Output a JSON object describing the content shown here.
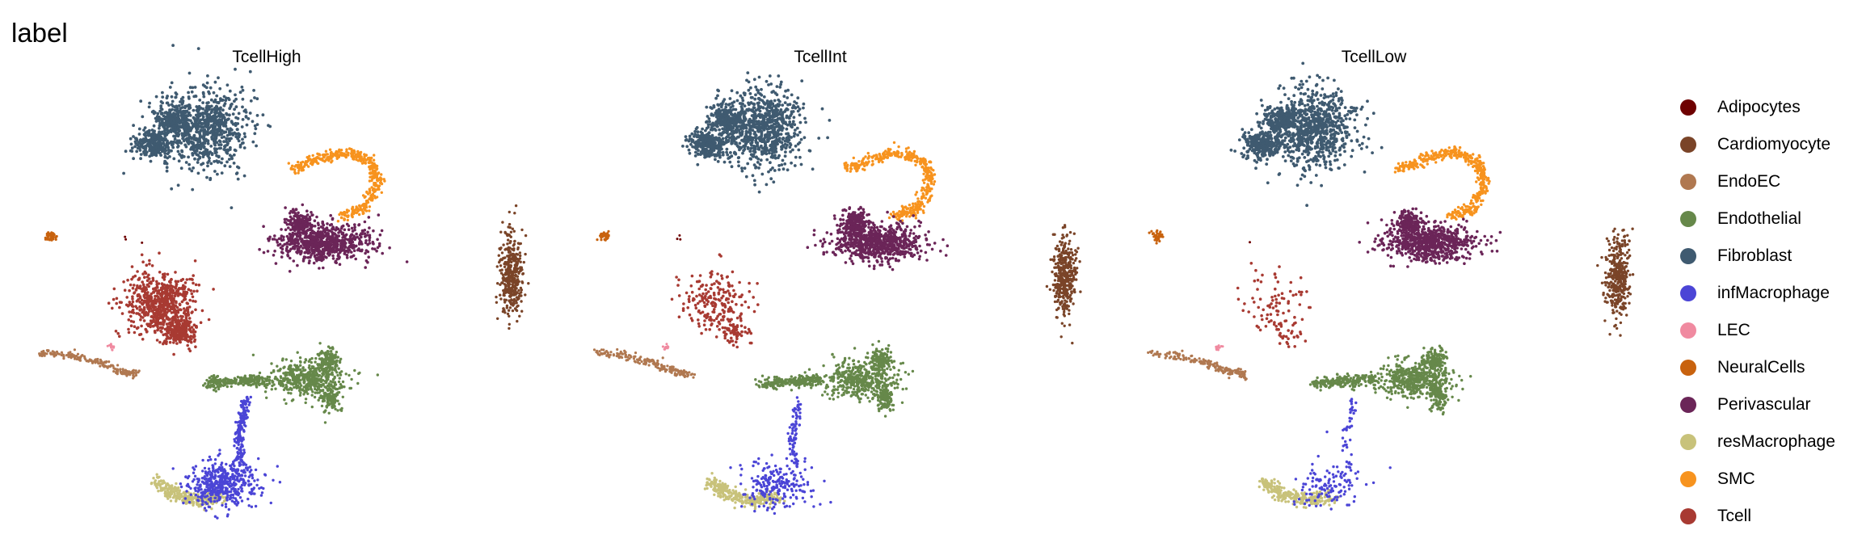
{
  "chart_data": {
    "type": "scatter",
    "title": "label",
    "facets": [
      "TcellHigh",
      "TcellInt",
      "TcellLow"
    ],
    "legend_position": "right",
    "grid": false,
    "axes_visible": false,
    "categories": [
      {
        "name": "Adipocytes",
        "color": "#6E0000"
      },
      {
        "name": "Cardiomyocyte",
        "color": "#7A4428"
      },
      {
        "name": "EndoEC",
        "color": "#B07850"
      },
      {
        "name": "Endothelial",
        "color": "#66884A"
      },
      {
        "name": "Fibroblast",
        "color": "#3F5A70"
      },
      {
        "name": "infMacrophage",
        "color": "#4B45D6"
      },
      {
        "name": "LEC",
        "color": "#F08AA0"
      },
      {
        "name": "NeuralCells",
        "color": "#C8620E"
      },
      {
        "name": "Perivascular",
        "color": "#6B2558"
      },
      {
        "name": "resMacrophage",
        "color": "#C8C27A"
      },
      {
        "name": "SMC",
        "color": "#F7931E"
      },
      {
        "name": "Tcell",
        "color": "#A83A32"
      }
    ],
    "cluster_relative_size": {
      "TcellHigh": {
        "Adipocytes": 0.2,
        "Cardiomyocyte": 1,
        "EndoEC": 1,
        "Endothelial": 1,
        "Fibroblast": 1,
        "infMacrophage": 1,
        "LEC": 1,
        "NeuralCells": 1,
        "Perivascular": 1,
        "resMacrophage": 1,
        "SMC": 1,
        "Tcell": 1
      },
      "TcellInt": {
        "Adipocytes": 0.2,
        "Cardiomyocyte": 1,
        "EndoEC": 1,
        "Endothelial": 1,
        "Fibroblast": 1,
        "infMacrophage": 0.45,
        "LEC": 1,
        "NeuralCells": 1,
        "Perivascular": 1,
        "resMacrophage": 1,
        "SMC": 1,
        "Tcell": 0.3
      },
      "TcellLow": {
        "Adipocytes": 0.1,
        "Cardiomyocyte": 1,
        "EndoEC": 1,
        "Endothelial": 1,
        "Fibroblast": 1,
        "infMacrophage": 0.25,
        "LEC": 1,
        "NeuralCells": 1,
        "Perivascular": 1,
        "resMacrophage": 1,
        "SMC": 1,
        "Tcell": 0.12
      }
    }
  }
}
